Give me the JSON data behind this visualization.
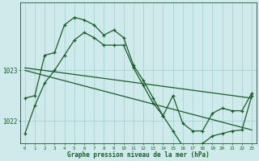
{
  "title": "Graphe pression niveau de la mer (hPa)",
  "bg_color": "#ceeaea",
  "plot_bg_color": "#ceeaea",
  "grid_color": "#9dcfcf",
  "line_color": "#1a5c28",
  "xlim": [
    -0.5,
    23.5
  ],
  "ylim": [
    1021.55,
    1024.35
  ],
  "yticks": [
    1022,
    1023
  ],
  "xticks": [
    0,
    1,
    2,
    3,
    4,
    5,
    6,
    7,
    8,
    9,
    10,
    11,
    12,
    13,
    14,
    15,
    16,
    17,
    18,
    19,
    20,
    21,
    22,
    23
  ],
  "series1_x": [
    0,
    1,
    2,
    3,
    4,
    5,
    6,
    7,
    8,
    9,
    10,
    11,
    12,
    13,
    14,
    15,
    16,
    17,
    18,
    19,
    20,
    21,
    22,
    23
  ],
  "series1_y": [
    1021.75,
    1022.3,
    1022.75,
    1023.0,
    1023.3,
    1023.6,
    1023.75,
    1023.65,
    1023.5,
    1023.5,
    1023.5,
    1023.05,
    1022.7,
    1022.35,
    1022.1,
    1022.5,
    1021.95,
    1021.8,
    1021.8,
    1022.15,
    1022.25,
    1022.2,
    1022.2,
    1022.55
  ],
  "series2_x": [
    0,
    1,
    2,
    3,
    4,
    5,
    6,
    7,
    8,
    9,
    10,
    11,
    12,
    13,
    14,
    15,
    16,
    17,
    18,
    19,
    20,
    21,
    22,
    23
  ],
  "series2_y": [
    1022.45,
    1022.5,
    1023.3,
    1023.35,
    1023.9,
    1024.05,
    1024.0,
    1023.9,
    1023.7,
    1023.8,
    1023.65,
    1023.1,
    1022.8,
    1022.45,
    1022.1,
    1021.8,
    1021.5,
    1021.45,
    1021.55,
    1021.7,
    1021.75,
    1021.8,
    1021.82,
    1022.5
  ],
  "line3_x": [
    0,
    23
  ],
  "line3_y": [
    1023.05,
    1022.45
  ],
  "line4_x": [
    0,
    23
  ],
  "line4_y": [
    1023.0,
    1021.82
  ]
}
